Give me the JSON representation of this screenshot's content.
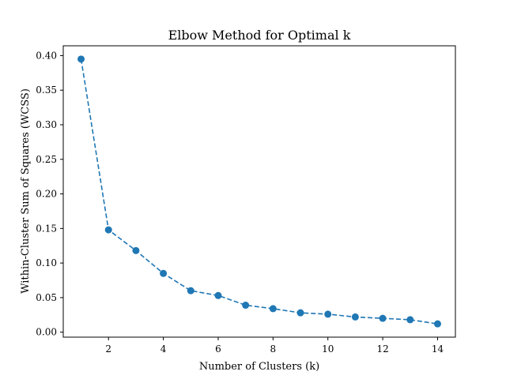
{
  "chart_data": {
    "type": "line",
    "title": "Elbow Method for Optimal k",
    "xlabel": "Number of Clusters (k)",
    "ylabel": "Within-Cluster Sum of Squares (WCSS)",
    "x": [
      1,
      2,
      3,
      4,
      5,
      6,
      7,
      8,
      9,
      10,
      11,
      12,
      13,
      14
    ],
    "series": [
      {
        "values": [
          0.395,
          0.148,
          0.118,
          0.085,
          0.06,
          0.053,
          0.039,
          0.034,
          0.028,
          0.026,
          0.022,
          0.02,
          0.018,
          0.012
        ],
        "color": "#1f77b4",
        "line_style": "dashed",
        "marker": "circle"
      }
    ],
    "xlim": [
      0.35,
      14.65
    ],
    "ylim": [
      -0.0072,
      0.4142
    ],
    "xticks": [
      2,
      4,
      6,
      8,
      10,
      12,
      14
    ],
    "xtick_labels": [
      "2",
      "4",
      "6",
      "8",
      "10",
      "12",
      "14"
    ],
    "yticks": [
      0.0,
      0.05,
      0.1,
      0.15,
      0.2,
      0.25,
      0.3,
      0.35,
      0.4
    ],
    "ytick_labels": [
      "0.00",
      "0.05",
      "0.10",
      "0.15",
      "0.20",
      "0.25",
      "0.30",
      "0.35",
      "0.40"
    ],
    "grid": false,
    "legend": "none"
  }
}
